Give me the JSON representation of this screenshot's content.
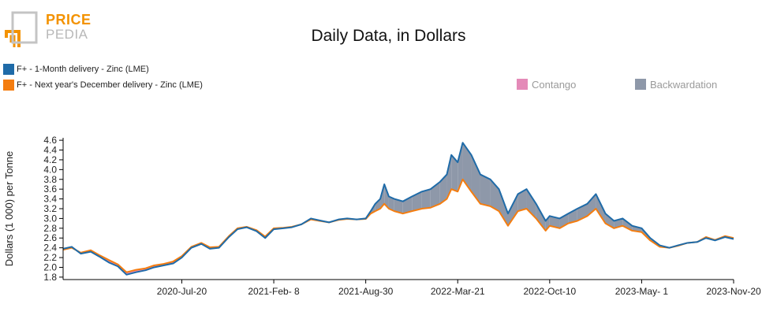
{
  "logo": {
    "line1": "PRICE",
    "line2": "PEDIA"
  },
  "colors": {
    "series1": "#1f6ba8",
    "series2": "#f47d10",
    "contango": "#e48ab8",
    "backwardation": "#8e98a9",
    "logo_orange": "#f39200",
    "logo_gray": "#b8b8b8"
  },
  "chart_data": {
    "type": "line",
    "title": "Daily Data, in Dollars",
    "ylabel": "Dollars (1 000) per Tonne",
    "xlabel": "",
    "ylim": [
      1.75,
      4.65
    ],
    "yticks": [
      1.8,
      2.0,
      2.2,
      2.4,
      2.6,
      2.8,
      3.0,
      3.2,
      3.4,
      3.6,
      3.8,
      4.0,
      4.2,
      4.4,
      4.6
    ],
    "ytick_labels": [
      "1.8",
      "2.0",
      "2.2",
      "2.4",
      "2.6",
      "2.8",
      "3.0",
      "3.2",
      "3.4",
      "3.6",
      "3.8",
      "4.0",
      "4.2",
      "4.4",
      "4.6"
    ],
    "xlim": [
      "2019-11-01",
      "2023-11-20"
    ],
    "xticks": [
      "2020-07-20",
      "2021-02-08",
      "2021-08-30",
      "2022-03-21",
      "2022-10-10",
      "2023-05-01",
      "2023-11-20"
    ],
    "xtick_labels": [
      "2020-Jul-20",
      "2021-Feb- 8",
      "2021-Aug-30",
      "2022-Mar-21",
      "2022-Oct-10",
      "2023-May- 1",
      "2023-Nov-20"
    ],
    "fill_legend": [
      {
        "name": "Contango",
        "color": "#e48ab8"
      },
      {
        "name": "Backwardation",
        "color": "#8e98a9"
      }
    ],
    "series": [
      {
        "name": "F+ - 1-Month delivery - Zinc (LME)",
        "color": "#1f6ba8",
        "x": [
          "2019-11-01",
          "2019-11-20",
          "2019-12-10",
          "2020-01-01",
          "2020-01-20",
          "2020-02-10",
          "2020-03-01",
          "2020-03-20",
          "2020-04-10",
          "2020-05-01",
          "2020-05-20",
          "2020-06-10",
          "2020-07-01",
          "2020-07-20",
          "2020-08-10",
          "2020-09-01",
          "2020-09-20",
          "2020-10-10",
          "2020-11-01",
          "2020-11-20",
          "2020-12-10",
          "2021-01-01",
          "2021-01-20",
          "2021-02-08",
          "2021-03-01",
          "2021-03-20",
          "2021-04-10",
          "2021-05-01",
          "2021-05-20",
          "2021-06-10",
          "2021-07-01",
          "2021-07-20",
          "2021-08-10",
          "2021-08-30",
          "2021-09-10",
          "2021-09-20",
          "2021-10-01",
          "2021-10-10",
          "2021-10-20",
          "2021-11-01",
          "2021-11-20",
          "2021-12-10",
          "2022-01-01",
          "2022-01-20",
          "2022-02-10",
          "2022-02-25",
          "2022-03-07",
          "2022-03-21",
          "2022-04-01",
          "2022-04-20",
          "2022-05-10",
          "2022-06-01",
          "2022-06-20",
          "2022-07-10",
          "2022-08-01",
          "2022-08-20",
          "2022-09-10",
          "2022-10-01",
          "2022-10-10",
          "2022-11-01",
          "2022-11-20",
          "2022-12-10",
          "2023-01-01",
          "2023-01-20",
          "2023-02-10",
          "2023-03-01",
          "2023-03-20",
          "2023-04-10",
          "2023-05-01",
          "2023-05-20",
          "2023-06-10",
          "2023-07-01",
          "2023-07-20",
          "2023-08-10",
          "2023-09-01",
          "2023-09-20",
          "2023-10-10",
          "2023-11-01",
          "2023-11-20"
        ],
        "values": [
          2.38,
          2.42,
          2.28,
          2.32,
          2.22,
          2.1,
          2.02,
          1.85,
          1.9,
          1.94,
          2.0,
          2.04,
          2.08,
          2.2,
          2.4,
          2.48,
          2.38,
          2.4,
          2.62,
          2.78,
          2.82,
          2.74,
          2.6,
          2.78,
          2.8,
          2.82,
          2.88,
          3.0,
          2.96,
          2.92,
          2.98,
          3.0,
          2.98,
          3.0,
          3.15,
          3.3,
          3.4,
          3.7,
          3.45,
          3.4,
          3.35,
          3.45,
          3.55,
          3.6,
          3.75,
          3.9,
          4.3,
          4.15,
          4.55,
          4.3,
          3.9,
          3.8,
          3.6,
          3.1,
          3.5,
          3.6,
          3.3,
          2.95,
          3.05,
          3.0,
          3.1,
          3.2,
          3.3,
          3.5,
          3.1,
          2.95,
          3.0,
          2.85,
          2.8,
          2.6,
          2.45,
          2.4,
          2.45,
          2.5,
          2.52,
          2.6,
          2.55,
          2.62,
          2.58
        ]
      },
      {
        "name": "F+ - Next year's December delivery - Zinc (LME)",
        "color": "#f47d10",
        "x": [
          "2019-11-01",
          "2019-11-20",
          "2019-12-10",
          "2020-01-01",
          "2020-01-20",
          "2020-02-10",
          "2020-03-01",
          "2020-03-20",
          "2020-04-10",
          "2020-05-01",
          "2020-05-20",
          "2020-06-10",
          "2020-07-01",
          "2020-07-20",
          "2020-08-10",
          "2020-09-01",
          "2020-09-20",
          "2020-10-10",
          "2020-11-01",
          "2020-11-20",
          "2020-12-10",
          "2021-01-01",
          "2021-01-20",
          "2021-02-08",
          "2021-03-01",
          "2021-03-20",
          "2021-04-10",
          "2021-05-01",
          "2021-05-20",
          "2021-06-10",
          "2021-07-01",
          "2021-07-20",
          "2021-08-10",
          "2021-08-30",
          "2021-09-10",
          "2021-09-20",
          "2021-10-01",
          "2021-10-10",
          "2021-10-20",
          "2021-11-01",
          "2021-11-20",
          "2021-12-10",
          "2022-01-01",
          "2022-01-20",
          "2022-02-10",
          "2022-02-25",
          "2022-03-07",
          "2022-03-21",
          "2022-04-01",
          "2022-04-20",
          "2022-05-10",
          "2022-06-01",
          "2022-06-20",
          "2022-07-10",
          "2022-08-01",
          "2022-08-20",
          "2022-09-10",
          "2022-10-01",
          "2022-10-10",
          "2022-11-01",
          "2022-11-20",
          "2022-12-10",
          "2023-01-01",
          "2023-01-20",
          "2023-02-10",
          "2023-03-01",
          "2023-03-20",
          "2023-04-10",
          "2023-05-01",
          "2023-05-20",
          "2023-06-10",
          "2023-07-01",
          "2023-07-20",
          "2023-08-10",
          "2023-09-01",
          "2023-09-20",
          "2023-10-10",
          "2023-11-01",
          "2023-11-20"
        ],
        "values": [
          2.36,
          2.4,
          2.3,
          2.35,
          2.25,
          2.15,
          2.06,
          1.9,
          1.95,
          1.98,
          2.04,
          2.07,
          2.12,
          2.23,
          2.42,
          2.5,
          2.41,
          2.42,
          2.64,
          2.8,
          2.83,
          2.76,
          2.63,
          2.8,
          2.81,
          2.83,
          2.88,
          2.98,
          2.95,
          2.92,
          2.97,
          2.99,
          2.98,
          2.99,
          3.1,
          3.15,
          3.2,
          3.3,
          3.2,
          3.15,
          3.1,
          3.15,
          3.2,
          3.22,
          3.3,
          3.4,
          3.6,
          3.55,
          3.8,
          3.55,
          3.3,
          3.25,
          3.15,
          2.85,
          3.15,
          3.2,
          3.0,
          2.75,
          2.85,
          2.8,
          2.9,
          2.95,
          3.05,
          3.2,
          2.9,
          2.8,
          2.85,
          2.75,
          2.72,
          2.55,
          2.42,
          2.4,
          2.44,
          2.5,
          2.52,
          2.62,
          2.56,
          2.64,
          2.6
        ]
      }
    ]
  }
}
